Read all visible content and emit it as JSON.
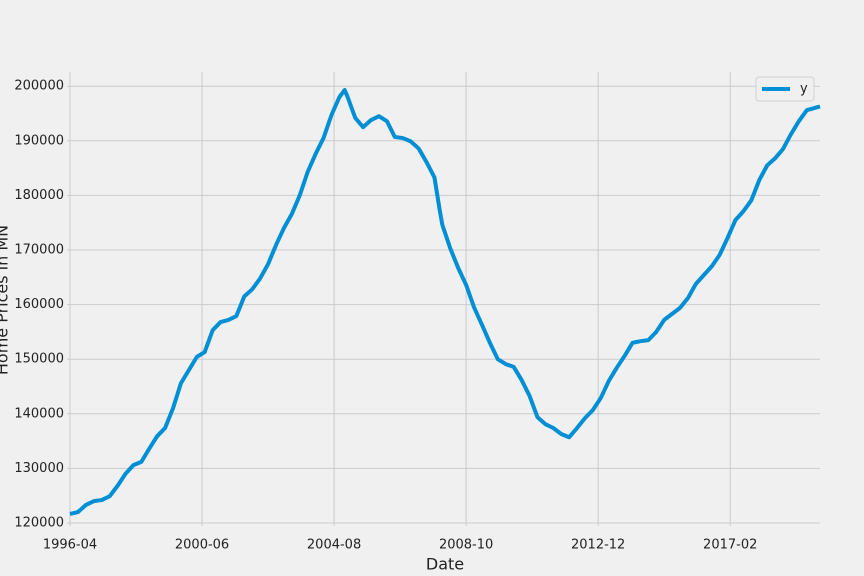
{
  "chart_data": {
    "type": "line",
    "xlabel": "Date",
    "ylabel": "Home Prices in MN",
    "x": [
      "1996-04",
      "1996-07",
      "1996-10",
      "1997-01",
      "1997-04",
      "1997-07",
      "1997-10",
      "1998-01",
      "1998-04",
      "1998-07",
      "1998-10",
      "1999-01",
      "1999-04",
      "1999-07",
      "1999-10",
      "2000-01",
      "2000-04",
      "2000-07",
      "2000-10",
      "2001-01",
      "2001-04",
      "2001-07",
      "2001-10",
      "2002-01",
      "2002-04",
      "2002-07",
      "2002-10",
      "2003-01",
      "2003-04",
      "2003-07",
      "2003-10",
      "2004-01",
      "2004-04",
      "2004-07",
      "2004-10",
      "2004-12",
      "2005-01",
      "2005-04",
      "2005-07",
      "2005-10",
      "2006-01",
      "2006-04",
      "2006-07",
      "2006-10",
      "2007-01",
      "2007-04",
      "2007-07",
      "2007-10",
      "2007-12",
      "2008-01",
      "2008-04",
      "2008-07",
      "2008-10",
      "2009-01",
      "2009-04",
      "2009-07",
      "2009-10",
      "2010-01",
      "2010-04",
      "2010-07",
      "2010-10",
      "2011-01",
      "2011-04",
      "2011-07",
      "2011-10",
      "2012-01",
      "2012-04",
      "2012-07",
      "2012-10",
      "2013-01",
      "2013-04",
      "2013-07",
      "2013-10",
      "2014-01",
      "2014-04",
      "2014-07",
      "2014-10",
      "2015-01",
      "2015-04",
      "2015-07",
      "2015-10",
      "2016-01",
      "2016-04",
      "2016-07",
      "2016-10",
      "2017-01",
      "2017-04",
      "2017-07",
      "2017-10",
      "2018-01",
      "2018-04",
      "2018-07",
      "2018-10",
      "2019-01",
      "2019-04",
      "2019-07",
      "2019-12"
    ],
    "series": [
      {
        "name": "y",
        "color": "#008fd5",
        "values": [
          121650,
          122000,
          123300,
          124000,
          124200,
          124900,
          126800,
          129000,
          130600,
          131200,
          133600,
          135900,
          137400,
          141000,
          145600,
          148000,
          150400,
          151300,
          155300,
          156800,
          157200,
          157900,
          161500,
          162800,
          164800,
          167400,
          170900,
          174000,
          176600,
          180000,
          184300,
          187600,
          190500,
          194700,
          198000,
          199300,
          198200,
          194200,
          192500,
          193800,
          194500,
          193600,
          190700,
          190500,
          189900,
          188600,
          186100,
          183300,
          177300,
          174600,
          170300,
          166700,
          163600,
          159500,
          156300,
          153000,
          150000,
          149100,
          148600,
          146200,
          143300,
          139400,
          138100,
          137400,
          136300,
          135700,
          137400,
          139200,
          140700,
          142900,
          146000,
          148400,
          150600,
          153000,
          153300,
          153500,
          155000,
          157200,
          158300,
          159400,
          161200,
          163800,
          165400,
          167000,
          169100,
          172200,
          175500,
          177100,
          179100,
          182800,
          185500,
          186800,
          188500,
          191200,
          193600,
          195600,
          196300
        ]
      }
    ],
    "xlim": [
      "1996-04",
      "2019-12"
    ],
    "xticks": [
      "1996-04",
      "2000-06",
      "2004-08",
      "2008-10",
      "2012-12",
      "2017-02"
    ],
    "ylim": [
      120000,
      202600
    ],
    "yticks": [
      120000,
      130000,
      140000,
      150000,
      160000,
      170000,
      180000,
      190000,
      200000
    ],
    "grid": true,
    "legend": "upper right"
  }
}
